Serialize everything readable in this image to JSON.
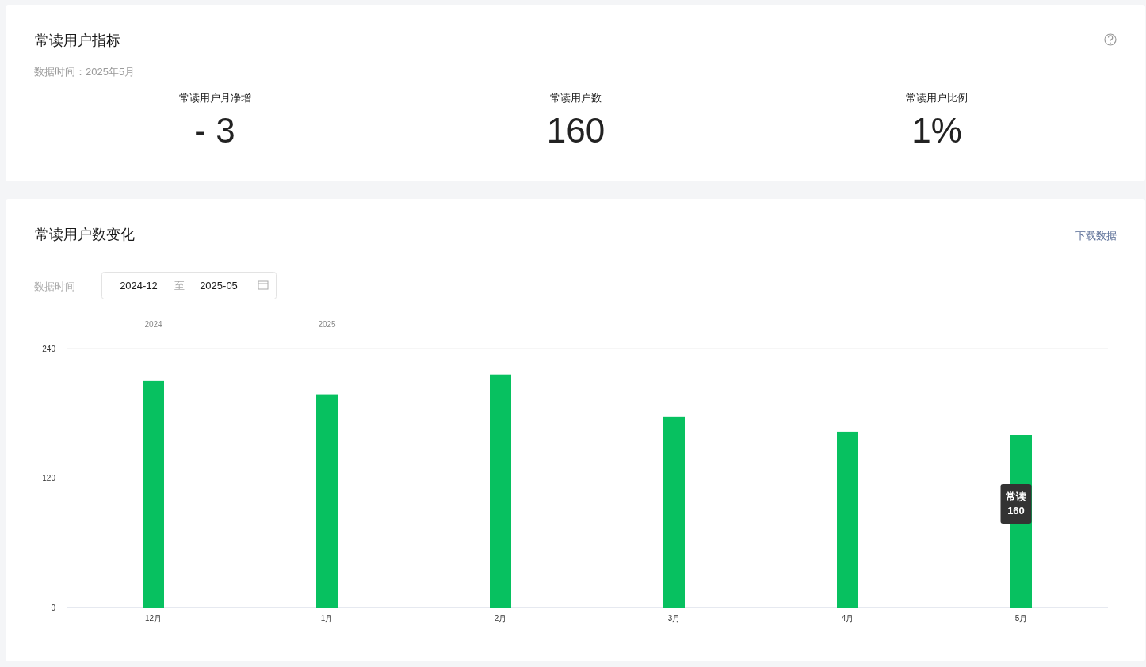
{
  "chart_data": [
    {
      "type": "other",
      "title": "常读用户指标",
      "subtitle": "数据时间：2025年5月",
      "categories": [
        "常读用户月净增",
        "常读用户数",
        "常读用户比例"
      ],
      "value_labels": [
        "- 3",
        "160",
        "1%"
      ]
    },
    {
      "type": "bar",
      "title": "常读用户数变化",
      "categories": [
        "12月",
        "1月",
        "2月",
        "3月",
        "4月",
        "5月"
      ],
      "values": [
        210,
        197,
        216,
        177,
        163,
        160
      ],
      "color": "#07c160",
      "ylim": [
        0,
        240
      ],
      "yticks": [
        0,
        120,
        240
      ],
      "grid": "y",
      "annotations": [
        "下载数据",
        "数据时间",
        "2024-12",
        "至",
        "2025-05",
        "2024",
        "2025",
        "常读\n160"
      ]
    }
  ]
}
